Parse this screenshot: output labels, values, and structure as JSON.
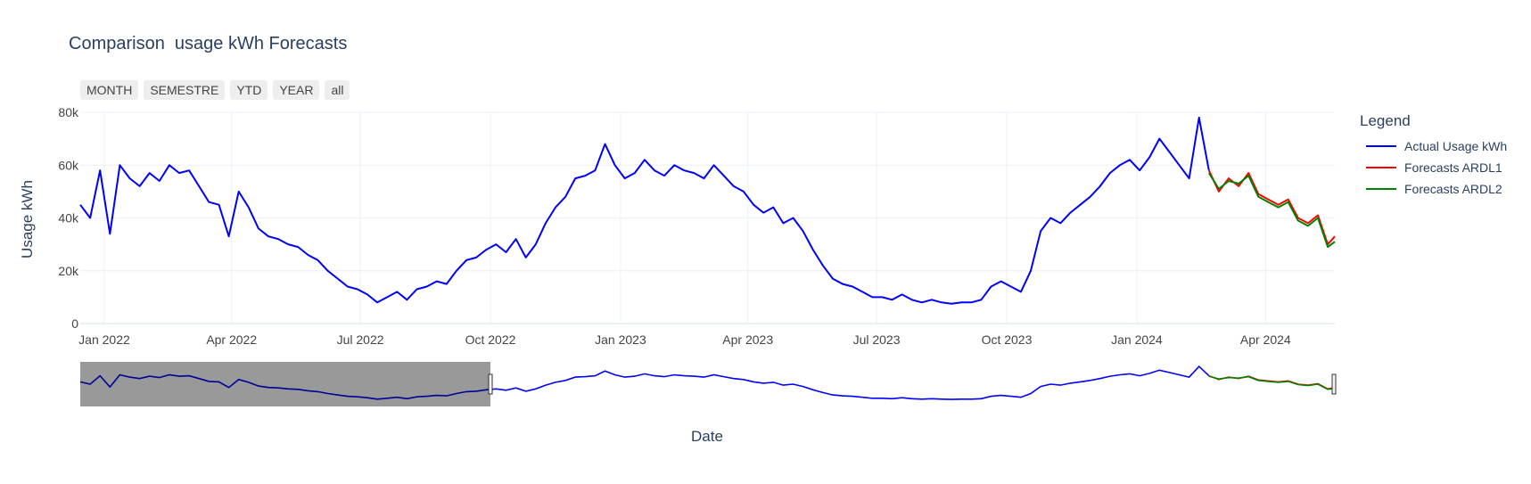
{
  "title": "Comparison  usage kWh Forecasts",
  "range_selector": [
    {
      "label": "MONTH"
    },
    {
      "label": "SEMESTRE"
    },
    {
      "label": "YTD"
    },
    {
      "label": "YEAR"
    },
    {
      "label": "all"
    }
  ],
  "legend": {
    "title": "Legend",
    "items": [
      {
        "label": "Actual Usage kWh",
        "color": "#0000ff"
      },
      {
        "label": "Forecasts ARDL1",
        "color": "#ff0000"
      },
      {
        "label": "Forecasts ARDL2",
        "color": "#008000"
      }
    ]
  },
  "chart_data": {
    "type": "line",
    "xlabel": "Date",
    "ylabel": "Usage kWh",
    "ylim": [
      0,
      80000
    ],
    "xlim": [
      "2021-12-15",
      "2024-05-20"
    ],
    "yticks": [
      {
        "v": 0,
        "label": "0"
      },
      {
        "v": 20000,
        "label": "20k"
      },
      {
        "v": 40000,
        "label": "40k"
      },
      {
        "v": 60000,
        "label": "60k"
      },
      {
        "v": 80000,
        "label": "80k"
      }
    ],
    "xticks": [
      {
        "date": "2022-01-01",
        "label": "Jan 2022"
      },
      {
        "date": "2022-04-01",
        "label": "Apr 2022"
      },
      {
        "date": "2022-07-01",
        "label": "Jul 2022"
      },
      {
        "date": "2022-10-01",
        "label": "Oct 2022"
      },
      {
        "date": "2023-01-01",
        "label": "Jan 2023"
      },
      {
        "date": "2023-04-01",
        "label": "Apr 2023"
      },
      {
        "date": "2023-07-01",
        "label": "Jul 2023"
      },
      {
        "date": "2023-10-01",
        "label": "Oct 2023"
      },
      {
        "date": "2024-01-01",
        "label": "Jan 2024"
      },
      {
        "date": "2024-04-01",
        "label": "Apr 2024"
      }
    ],
    "grid": true,
    "legend_position": "right",
    "rangeslider": {
      "selected_range": [
        "2021-12-15",
        "2022-10-01"
      ]
    },
    "series": [
      {
        "name": "Actual Usage kWh",
        "color": "#0000ff",
        "points": [
          [
            "2021-12-15",
            45000
          ],
          [
            "2021-12-22",
            40000
          ],
          [
            "2021-12-29",
            58000
          ],
          [
            "2022-01-05",
            34000
          ],
          [
            "2022-01-12",
            60000
          ],
          [
            "2022-01-19",
            55000
          ],
          [
            "2022-01-26",
            52000
          ],
          [
            "2022-02-02",
            57000
          ],
          [
            "2022-02-09",
            54000
          ],
          [
            "2022-02-16",
            60000
          ],
          [
            "2022-02-23",
            57000
          ],
          [
            "2022-03-02",
            58000
          ],
          [
            "2022-03-09",
            52000
          ],
          [
            "2022-03-16",
            46000
          ],
          [
            "2022-03-23",
            45000
          ],
          [
            "2022-03-30",
            33000
          ],
          [
            "2022-04-06",
            50000
          ],
          [
            "2022-04-13",
            44000
          ],
          [
            "2022-04-20",
            36000
          ],
          [
            "2022-04-27",
            33000
          ],
          [
            "2022-05-04",
            32000
          ],
          [
            "2022-05-11",
            30000
          ],
          [
            "2022-05-18",
            29000
          ],
          [
            "2022-05-25",
            26000
          ],
          [
            "2022-06-01",
            24000
          ],
          [
            "2022-06-08",
            20000
          ],
          [
            "2022-06-15",
            17000
          ],
          [
            "2022-06-22",
            14000
          ],
          [
            "2022-06-29",
            13000
          ],
          [
            "2022-07-06",
            11000
          ],
          [
            "2022-07-13",
            8000
          ],
          [
            "2022-07-20",
            10000
          ],
          [
            "2022-07-27",
            12000
          ],
          [
            "2022-08-03",
            9000
          ],
          [
            "2022-08-10",
            13000
          ],
          [
            "2022-08-17",
            14000
          ],
          [
            "2022-08-24",
            16000
          ],
          [
            "2022-08-31",
            15000
          ],
          [
            "2022-09-07",
            20000
          ],
          [
            "2022-09-14",
            24000
          ],
          [
            "2022-09-21",
            25000
          ],
          [
            "2022-09-28",
            28000
          ],
          [
            "2022-10-05",
            30000
          ],
          [
            "2022-10-12",
            27000
          ],
          [
            "2022-10-19",
            32000
          ],
          [
            "2022-10-26",
            25000
          ],
          [
            "2022-11-02",
            30000
          ],
          [
            "2022-11-09",
            38000
          ],
          [
            "2022-11-16",
            44000
          ],
          [
            "2022-11-23",
            48000
          ],
          [
            "2022-11-30",
            55000
          ],
          [
            "2022-12-07",
            56000
          ],
          [
            "2022-12-14",
            58000
          ],
          [
            "2022-12-21",
            68000
          ],
          [
            "2022-12-28",
            60000
          ],
          [
            "2023-01-04",
            55000
          ],
          [
            "2023-01-11",
            57000
          ],
          [
            "2023-01-18",
            62000
          ],
          [
            "2023-01-25",
            58000
          ],
          [
            "2023-02-01",
            56000
          ],
          [
            "2023-02-08",
            60000
          ],
          [
            "2023-02-15",
            58000
          ],
          [
            "2023-02-22",
            57000
          ],
          [
            "2023-03-01",
            55000
          ],
          [
            "2023-03-08",
            60000
          ],
          [
            "2023-03-15",
            56000
          ],
          [
            "2023-03-22",
            52000
          ],
          [
            "2023-03-29",
            50000
          ],
          [
            "2023-04-05",
            45000
          ],
          [
            "2023-04-12",
            42000
          ],
          [
            "2023-04-19",
            44000
          ],
          [
            "2023-04-26",
            38000
          ],
          [
            "2023-05-03",
            40000
          ],
          [
            "2023-05-10",
            35000
          ],
          [
            "2023-05-17",
            28000
          ],
          [
            "2023-05-24",
            22000
          ],
          [
            "2023-05-31",
            17000
          ],
          [
            "2023-06-07",
            15000
          ],
          [
            "2023-06-14",
            14000
          ],
          [
            "2023-06-21",
            12000
          ],
          [
            "2023-06-28",
            10000
          ],
          [
            "2023-07-05",
            10000
          ],
          [
            "2023-07-12",
            9000
          ],
          [
            "2023-07-19",
            11000
          ],
          [
            "2023-07-26",
            9000
          ],
          [
            "2023-08-02",
            8000
          ],
          [
            "2023-08-09",
            9000
          ],
          [
            "2023-08-16",
            8000
          ],
          [
            "2023-08-23",
            7500
          ],
          [
            "2023-08-30",
            8000
          ],
          [
            "2023-09-06",
            8000
          ],
          [
            "2023-09-13",
            9000
          ],
          [
            "2023-09-20",
            14000
          ],
          [
            "2023-09-27",
            16000
          ],
          [
            "2023-10-04",
            14000
          ],
          [
            "2023-10-11",
            12000
          ],
          [
            "2023-10-18",
            20000
          ],
          [
            "2023-10-25",
            35000
          ],
          [
            "2023-11-01",
            40000
          ],
          [
            "2023-11-08",
            38000
          ],
          [
            "2023-11-15",
            42000
          ],
          [
            "2023-11-22",
            45000
          ],
          [
            "2023-11-29",
            48000
          ],
          [
            "2023-12-06",
            52000
          ],
          [
            "2023-12-13",
            57000
          ],
          [
            "2023-12-20",
            60000
          ],
          [
            "2023-12-27",
            62000
          ],
          [
            "2024-01-03",
            58000
          ],
          [
            "2024-01-10",
            63000
          ],
          [
            "2024-01-17",
            70000
          ],
          [
            "2024-01-24",
            65000
          ],
          [
            "2024-01-31",
            60000
          ],
          [
            "2024-02-07",
            55000
          ],
          [
            "2024-02-14",
            78000
          ],
          [
            "2024-02-21",
            58000
          ]
        ]
      },
      {
        "name": "Forecasts ARDL1",
        "color": "#ff0000",
        "points": [
          [
            "2024-02-21",
            58000
          ],
          [
            "2024-02-28",
            50000
          ],
          [
            "2024-03-06",
            55000
          ],
          [
            "2024-03-13",
            52000
          ],
          [
            "2024-03-20",
            57000
          ],
          [
            "2024-03-27",
            49000
          ],
          [
            "2024-04-03",
            47000
          ],
          [
            "2024-04-10",
            45000
          ],
          [
            "2024-04-17",
            47000
          ],
          [
            "2024-04-24",
            40000
          ],
          [
            "2024-05-01",
            38000
          ],
          [
            "2024-05-08",
            41000
          ],
          [
            "2024-05-15",
            30000
          ],
          [
            "2024-05-20",
            33000
          ]
        ]
      },
      {
        "name": "Forecasts ARDL2",
        "color": "#008000",
        "points": [
          [
            "2024-02-21",
            57000
          ],
          [
            "2024-02-28",
            51000
          ],
          [
            "2024-03-06",
            54000
          ],
          [
            "2024-03-13",
            53000
          ],
          [
            "2024-03-20",
            56000
          ],
          [
            "2024-03-27",
            48000
          ],
          [
            "2024-04-03",
            46000
          ],
          [
            "2024-04-10",
            44000
          ],
          [
            "2024-04-17",
            46000
          ],
          [
            "2024-04-24",
            39000
          ],
          [
            "2024-05-01",
            37000
          ],
          [
            "2024-05-08",
            40000
          ],
          [
            "2024-05-15",
            29000
          ],
          [
            "2024-05-20",
            31000
          ]
        ]
      }
    ]
  }
}
